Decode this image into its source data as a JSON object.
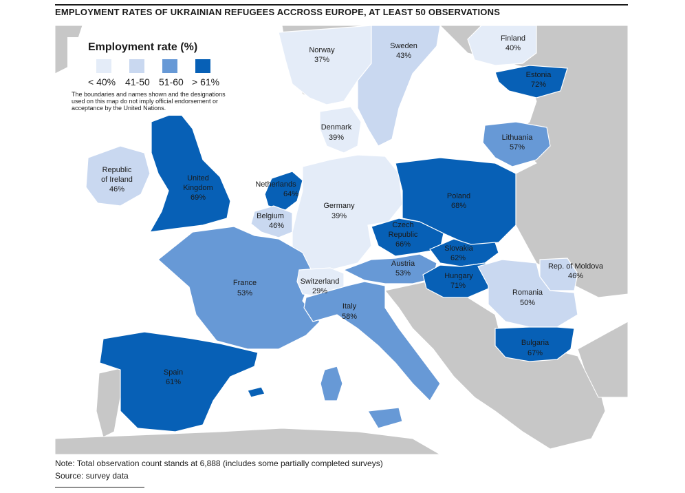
{
  "title": "EMPLOYMENT RATES OF UKRAINIAN REFUGEES ACCROSS EUROPE, AT LEAST 50 OBSERVATIONS",
  "legend": {
    "title": "Employment rate (%)",
    "categories": [
      {
        "label": "< 40%",
        "color": "#e4ecf8"
      },
      {
        "label": "41-50",
        "color": "#c9d8f0"
      },
      {
        "label": "51-60",
        "color": "#6799d6"
      },
      {
        "label": "> 61%",
        "color": "#0760b6"
      }
    ],
    "disclaimer": "The boundaries and names shown and the designations used on this map do not imply official endorsement or acceptance by the United Nations."
  },
  "colors": {
    "land_other": "#c7c7c7",
    "sea": "#ffffff",
    "border": "#ffffff"
  },
  "countries": [
    {
      "name": "Norway",
      "value": "37%",
      "category": 0
    },
    {
      "name": "Sweden",
      "value": "43%",
      "category": 1
    },
    {
      "name": "Finland",
      "value": "40%",
      "category": 0
    },
    {
      "name": "Estonia",
      "value": "72%",
      "category": 3
    },
    {
      "name": "Denmark",
      "value": "39%",
      "category": 0
    },
    {
      "name": "Lithuania",
      "value": "57%",
      "category": 2
    },
    {
      "name": "Republic of Ireland",
      "value": "46%",
      "category": 1
    },
    {
      "name": "United Kingdom",
      "value": "69%",
      "category": 3
    },
    {
      "name": "Netherlands",
      "value": "64%",
      "category": 3
    },
    {
      "name": "Germany",
      "value": "39%",
      "category": 0
    },
    {
      "name": "Poland",
      "value": "68%",
      "category": 3
    },
    {
      "name": "Belgium",
      "value": "46%",
      "category": 1
    },
    {
      "name": "Czech Republic",
      "value": "66%",
      "category": 3
    },
    {
      "name": "Slovakia",
      "value": "62%",
      "category": 3
    },
    {
      "name": "Austria",
      "value": "53%",
      "category": 2
    },
    {
      "name": "Rep. of Moldova",
      "value": "46%",
      "category": 1
    },
    {
      "name": "France",
      "value": "53%",
      "category": 2
    },
    {
      "name": "Switzerland",
      "value": "29%",
      "category": 0
    },
    {
      "name": "Hungary",
      "value": "71%",
      "category": 3
    },
    {
      "name": "Romania",
      "value": "50%",
      "category": 1
    },
    {
      "name": "Italy",
      "value": "58%",
      "category": 2
    },
    {
      "name": "Bulgaria",
      "value": "67%",
      "category": 3
    },
    {
      "name": "Spain",
      "value": "61%",
      "category": 3
    }
  ],
  "note": "Note: Total observation count stands at 6,888 (includes some partially completed surveys)",
  "source": "Source: survey data"
}
